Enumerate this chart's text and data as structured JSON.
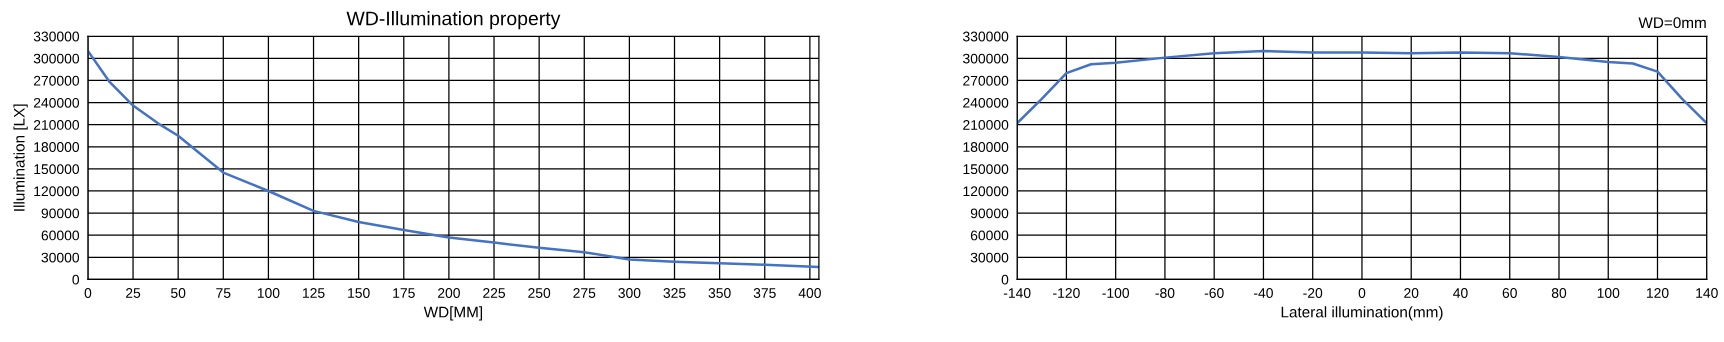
{
  "chart_data": [
    {
      "type": "line",
      "title": "WD-Illumination property",
      "xlabel": "WD[MM]",
      "ylabel": "Illumination [LX]",
      "grid": true,
      "x": [
        0,
        12,
        25,
        40,
        50,
        60,
        75,
        90,
        100,
        125,
        150,
        175,
        200,
        225,
        250,
        275,
        300,
        325,
        350,
        375,
        405
      ],
      "series": [
        {
          "color": "#4472c4",
          "values": [
            310000,
            268000,
            236000,
            210000,
            195000,
            175000,
            145000,
            130000,
            120000,
            93000,
            78000,
            67000,
            57000,
            50000,
            43000,
            37000,
            27000,
            24000,
            22000,
            20000,
            17000
          ]
        }
      ],
      "xlim": [
        0,
        405
      ],
      "xticks": [
        0,
        25,
        50,
        75,
        100,
        125,
        150,
        175,
        200,
        225,
        250,
        275,
        300,
        325,
        350,
        375,
        400
      ],
      "ylim": [
        0,
        330000
      ],
      "yticks": [
        0,
        30000,
        60000,
        90000,
        120000,
        150000,
        180000,
        210000,
        240000,
        270000,
        300000,
        330000
      ]
    },
    {
      "type": "line",
      "subtitle": "WD=0mm",
      "xlabel": "Lateral illumination(mm)",
      "grid": true,
      "x": [
        -140,
        -130,
        -120,
        -110,
        -100,
        -80,
        -60,
        -40,
        -20,
        0,
        20,
        40,
        60,
        80,
        100,
        110,
        120,
        130,
        140
      ],
      "series": [
        {
          "color": "#4472c4",
          "values": [
            212000,
            245000,
            280000,
            292000,
            294000,
            301000,
            307000,
            310000,
            308000,
            308000,
            307000,
            308000,
            307000,
            302000,
            295000,
            293000,
            282000,
            245000,
            212000
          ]
        }
      ],
      "xlim": [
        -140,
        140
      ],
      "xticks": [
        -140,
        -120,
        -100,
        -80,
        -60,
        -40,
        -20,
        0,
        20,
        40,
        60,
        80,
        100,
        120,
        140
      ],
      "ylim": [
        0,
        330000
      ],
      "yticks": [
        0,
        30000,
        60000,
        90000,
        120000,
        150000,
        180000,
        210000,
        240000,
        270000,
        300000,
        330000
      ]
    }
  ]
}
